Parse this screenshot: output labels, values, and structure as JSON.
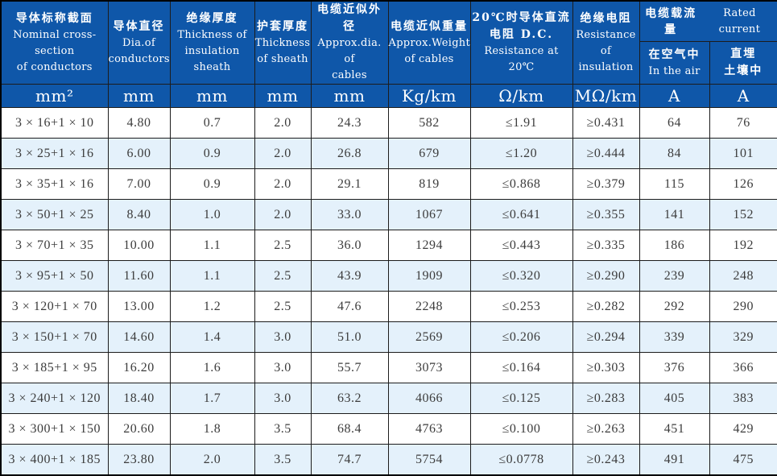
{
  "colors": {
    "header_blue": "#0f57a9",
    "row_alt": "#e4f1fb",
    "grid": "#1c1c1c",
    "body_text": "#3c3c3c",
    "header_text": "#ffffff"
  },
  "header": {
    "main_columns": [
      {
        "lines": [
          "导体标称截面",
          "Nominal cross-section",
          "of conductors"
        ]
      },
      {
        "lines": [
          "导体直径",
          "Dia.of",
          "conductors"
        ]
      },
      {
        "lines": [
          "绝缘厚度",
          "Thickness of",
          "insulation sheath"
        ]
      },
      {
        "lines": [
          "护套厚度",
          "Thickness",
          "of sheath"
        ]
      },
      {
        "lines": [
          "电缆近似外径",
          "Approx.dia. of",
          "cables"
        ]
      },
      {
        "lines": [
          "电缆近似重量",
          "Approx.Weight",
          "of cables"
        ]
      },
      {
        "lines": [
          "20℃时导体直流",
          "电阻 D.C.",
          "Resistance at 20℃"
        ]
      },
      {
        "lines": [
          "绝缘电阻",
          "Resistance",
          "of insulation"
        ]
      }
    ],
    "rated_current_group": {
      "zh": "电缆载流量",
      "en": "Rated current"
    },
    "sub_columns": [
      {
        "zh": "在空气中",
        "en": "In the air"
      },
      {
        "zh": "直埋",
        "en": "土壤中"
      }
    ],
    "units": [
      "mm²",
      "mm",
      "mm",
      "mm",
      "mm",
      "Kg/km",
      "Ω/km",
      "MΩ/km",
      "A",
      "A"
    ]
  },
  "table": {
    "rows": [
      {
        "cells": [
          "3 × 16+1 × 10",
          "4.80",
          "0.7",
          "2.0",
          "24.3",
          "582",
          "≤1.91",
          "≥0.431",
          "64",
          "76"
        ]
      },
      {
        "cells": [
          "3 × 25+1 × 16",
          "6.00",
          "0.9",
          "2.0",
          "26.8",
          "679",
          "≤1.20",
          "≥0.444",
          "84",
          "101"
        ]
      },
      {
        "cells": [
          "3 × 35+1 × 16",
          "7.00",
          "0.9",
          "2.0",
          "29.1",
          "819",
          "≤0.868",
          "≥0.379",
          "115",
          "126"
        ]
      },
      {
        "cells": [
          "3 × 50+1 × 25",
          "8.40",
          "1.0",
          "2.0",
          "33.0",
          "1067",
          "≤0.641",
          "≥0.355",
          "141",
          "152"
        ]
      },
      {
        "cells": [
          "3 × 70+1 × 35",
          "10.00",
          "1.1",
          "2.5",
          "36.0",
          "1294",
          "≤0.443",
          "≥0.335",
          "186",
          "192"
        ]
      },
      {
        "cells": [
          "3 × 95+1 × 50",
          "11.60",
          "1.1",
          "2.5",
          "43.9",
          "1909",
          "≤0.320",
          "≥0.290",
          "239",
          "248"
        ]
      },
      {
        "cells": [
          "3 × 120+1 × 70",
          "13.00",
          "1.2",
          "2.5",
          "47.6",
          "2248",
          "≤0.253",
          "≥0.282",
          "292",
          "290"
        ]
      },
      {
        "cells": [
          "3 × 150+1 × 70",
          "14.60",
          "1.4",
          "3.0",
          "51.0",
          "2569",
          "≤0.206",
          "≥0.294",
          "339",
          "329"
        ]
      },
      {
        "cells": [
          "3 × 185+1 × 95",
          "16.20",
          "1.6",
          "3.0",
          "55.7",
          "3073",
          "≤0.164",
          "≥0.303",
          "376",
          "366"
        ]
      },
      {
        "cells": [
          "3 × 240+1 × 120",
          "18.40",
          "1.7",
          "3.0",
          "63.2",
          "4066",
          "≤0.125",
          "≥0.283",
          "405",
          "383"
        ]
      },
      {
        "cells": [
          "3 × 300+1 × 150",
          "20.60",
          "1.8",
          "3.5",
          "68.4",
          "4763",
          "≤0.100",
          "≥0.263",
          "451",
          "429"
        ]
      },
      {
        "cells": [
          "3 × 400+1 × 185",
          "23.80",
          "2.0",
          "3.5",
          "74.7",
          "5754",
          "≤0.0778",
          "≥0.243",
          "491",
          "475"
        ]
      }
    ]
  }
}
